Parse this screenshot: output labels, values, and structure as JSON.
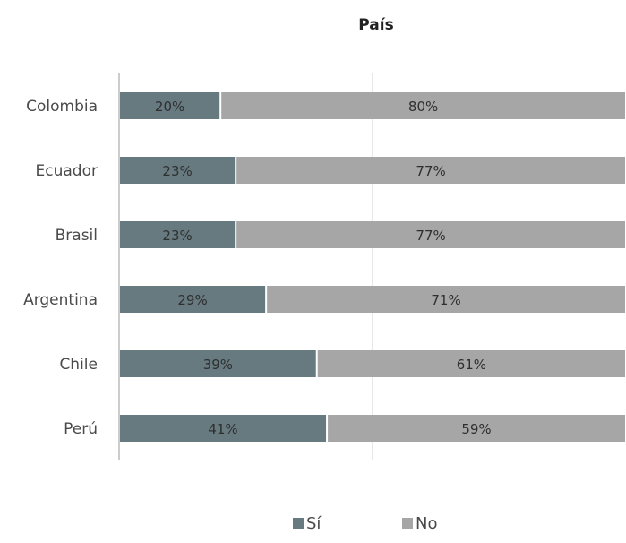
{
  "chart_data": {
    "type": "bar",
    "orientation": "horizontal",
    "stacked": true,
    "title": "País",
    "categories": [
      "Colombia",
      "Ecuador",
      "Brasil",
      "Argentina",
      "Chile",
      "Perú"
    ],
    "series": [
      {
        "name": "Sí",
        "values": [
          20,
          23,
          23,
          29,
          39,
          41
        ],
        "labels": [
          "20%",
          "23%",
          "23%",
          "29%",
          "39%",
          "41%"
        ],
        "color": "#667a80"
      },
      {
        "name": "No",
        "values": [
          80,
          77,
          77,
          71,
          61,
          59
        ],
        "labels": [
          "80%",
          "77%",
          "77%",
          "71%",
          "61%",
          "59%"
        ],
        "color": "#a6a6a6"
      }
    ],
    "xlim": [
      0,
      100
    ],
    "grid": true,
    "legend_position": "bottom"
  }
}
